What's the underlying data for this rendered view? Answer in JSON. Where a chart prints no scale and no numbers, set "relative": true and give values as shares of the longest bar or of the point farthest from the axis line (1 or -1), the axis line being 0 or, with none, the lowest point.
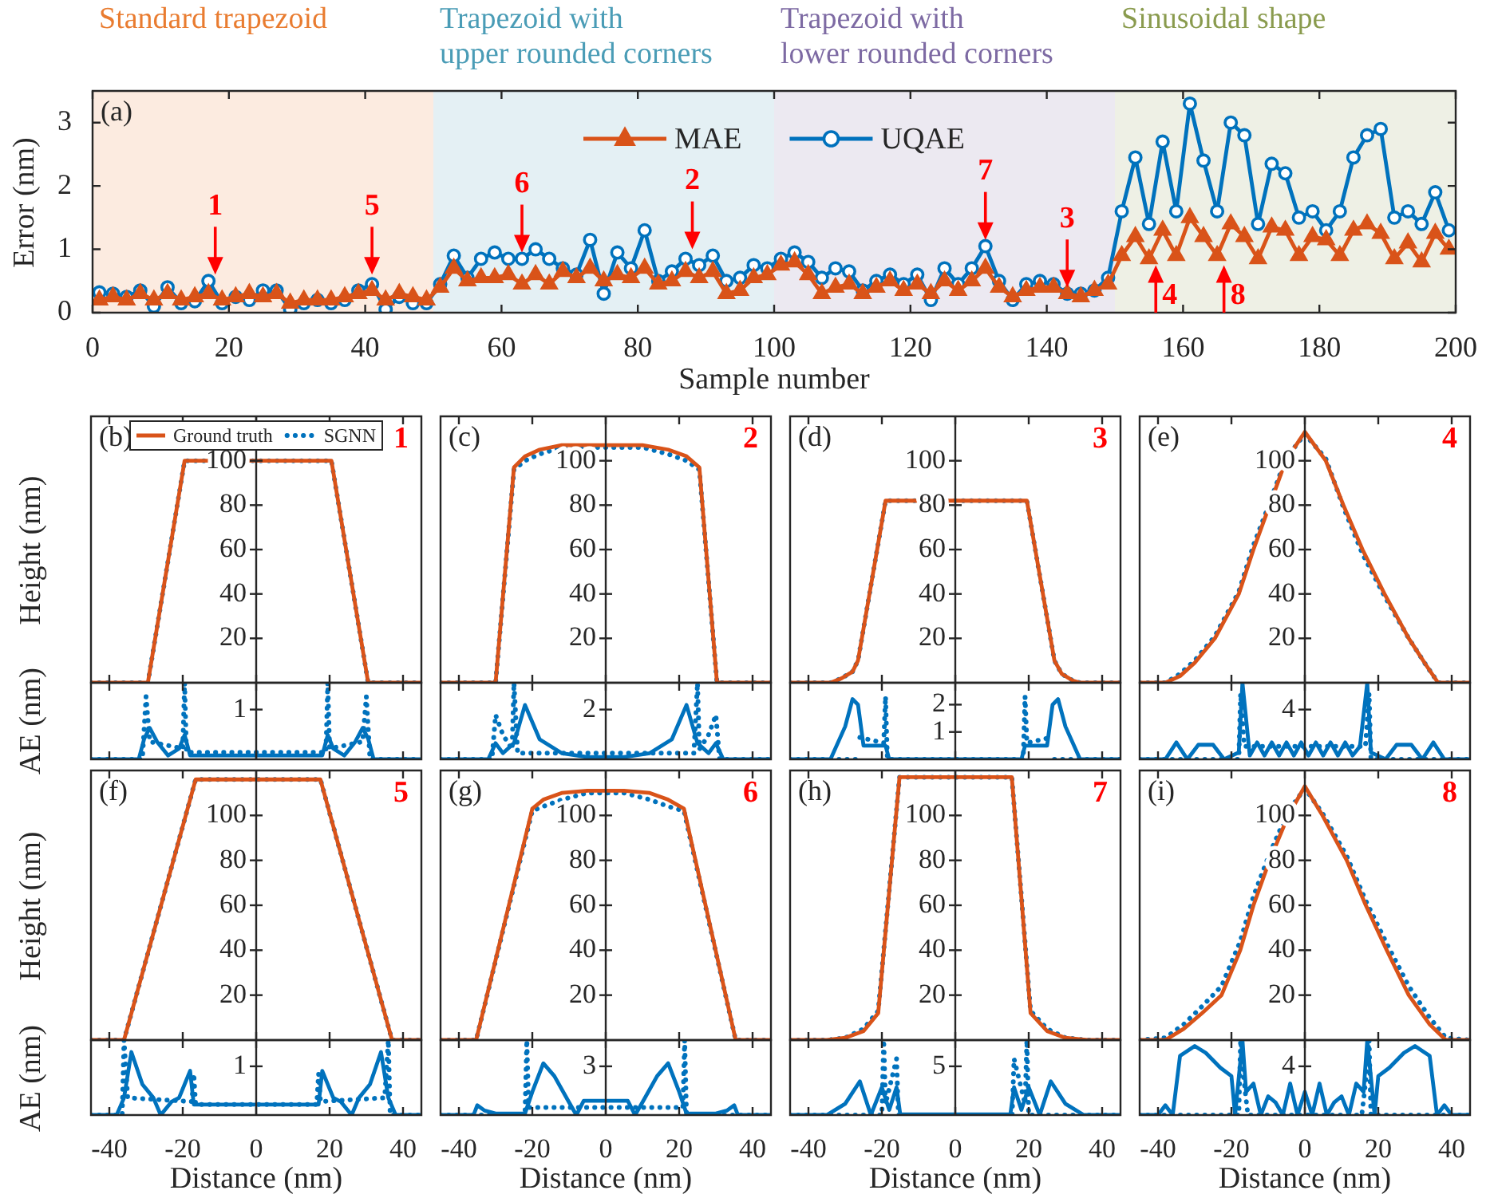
{
  "chart_data": [
    {
      "type": "line",
      "xlabel": "Sample number",
      "ylabel": "Error (nm)",
      "xlim": [
        0,
        200
      ],
      "xticks": [
        0,
        20,
        40,
        60,
        80,
        100,
        120,
        140,
        160,
        180,
        200
      ],
      "ylim": [
        0,
        3.5
      ],
      "yticks": [
        0,
        1,
        2,
        3
      ],
      "legend": "top",
      "bands": [
        {
          "axis": "x",
          "from": 0,
          "to": 50,
          "label": "Standard trapezoid",
          "color": "#e97c30"
        },
        {
          "axis": "x",
          "from": 50,
          "to": 100,
          "label": "Trapezoid with\nupper rounded corners",
          "color": "#4a9cb6"
        },
        {
          "axis": "x",
          "from": 100,
          "to": 150,
          "label": "Trapezoid with\nlower rounded corners",
          "color": "#7d6aa3"
        },
        {
          "axis": "x",
          "from": 150,
          "to": 200,
          "label": "Sinusoidal shape",
          "color": "#8a9b4e"
        }
      ],
      "annotations": [
        "(a)",
        {
          "text": "1",
          "x": 18,
          "y": 0.6
        },
        {
          "text": "5",
          "x": 41,
          "y": 0.6
        },
        {
          "text": "6",
          "x": 63,
          "y": 0.95
        },
        {
          "text": "2",
          "x": 88,
          "y": 1.0
        },
        {
          "text": "7",
          "x": 131,
          "y": 1.15
        },
        {
          "text": "3",
          "x": 143,
          "y": 0.4
        },
        {
          "text": "4",
          "x": 156,
          "y": 0.75
        },
        {
          "text": "8",
          "x": 166,
          "y": 0.75
        }
      ],
      "x": [
        1,
        3,
        5,
        7,
        9,
        11,
        13,
        15,
        17,
        19,
        21,
        23,
        25,
        27,
        29,
        31,
        33,
        35,
        37,
        39,
        41,
        43,
        45,
        47,
        49,
        51,
        53,
        55,
        57,
        59,
        61,
        63,
        65,
        67,
        69,
        71,
        73,
        75,
        77,
        79,
        81,
        83,
        85,
        87,
        89,
        91,
        93,
        95,
        97,
        99,
        101,
        103,
        105,
        107,
        109,
        111,
        113,
        115,
        117,
        119,
        121,
        123,
        125,
        127,
        129,
        131,
        133,
        135,
        137,
        139,
        141,
        143,
        145,
        147,
        149,
        151,
        153,
        155,
        157,
        159,
        161,
        163,
        165,
        167,
        169,
        171,
        173,
        175,
        177,
        179,
        181,
        183,
        185,
        187,
        189,
        191,
        193,
        195,
        197,
        199
      ],
      "series": [
        {
          "name": "MAE",
          "color": "#d95319",
          "marker": "triangle",
          "values": [
            0.2,
            0.25,
            0.2,
            0.3,
            0.2,
            0.3,
            0.2,
            0.25,
            0.3,
            0.2,
            0.25,
            0.3,
            0.25,
            0.3,
            0.15,
            0.2,
            0.2,
            0.2,
            0.25,
            0.3,
            0.35,
            0.2,
            0.3,
            0.25,
            0.2,
            0.4,
            0.7,
            0.5,
            0.55,
            0.55,
            0.6,
            0.45,
            0.6,
            0.45,
            0.65,
            0.55,
            0.7,
            0.5,
            0.6,
            0.55,
            0.7,
            0.45,
            0.5,
            0.65,
            0.55,
            0.65,
            0.3,
            0.35,
            0.55,
            0.6,
            0.75,
            0.8,
            0.6,
            0.3,
            0.4,
            0.45,
            0.3,
            0.4,
            0.5,
            0.35,
            0.45,
            0.3,
            0.5,
            0.35,
            0.5,
            0.7,
            0.4,
            0.25,
            0.35,
            0.4,
            0.4,
            0.3,
            0.25,
            0.35,
            0.45,
            0.9,
            1.2,
            0.85,
            1.3,
            0.9,
            1.5,
            1.2,
            0.9,
            1.4,
            1.2,
            0.85,
            1.35,
            1.3,
            0.9,
            1.2,
            1.15,
            0.9,
            1.3,
            1.4,
            1.25,
            0.85,
            1.1,
            0.8,
            1.25,
            1.0
          ]
        },
        {
          "name": "UQAE",
          "color": "#0072bd",
          "marker": "circle",
          "values": [
            0.32,
            0.3,
            0.25,
            0.35,
            0.1,
            0.4,
            0.15,
            0.18,
            0.5,
            0.15,
            0.25,
            0.2,
            0.35,
            0.35,
            0.05,
            0.15,
            0.2,
            0.15,
            0.2,
            0.35,
            0.45,
            0.05,
            0.25,
            0.15,
            0.15,
            0.45,
            0.9,
            0.55,
            0.85,
            0.95,
            0.85,
            0.85,
            1.0,
            0.85,
            0.7,
            0.6,
            1.15,
            0.3,
            0.95,
            0.7,
            1.3,
            0.5,
            0.65,
            0.85,
            0.75,
            0.9,
            0.5,
            0.55,
            0.75,
            0.7,
            0.85,
            0.95,
            0.8,
            0.55,
            0.7,
            0.65,
            0.35,
            0.5,
            0.6,
            0.45,
            0.6,
            0.2,
            0.7,
            0.45,
            0.7,
            1.05,
            0.5,
            0.2,
            0.45,
            0.5,
            0.45,
            0.3,
            0.3,
            0.35,
            0.55,
            1.6,
            2.45,
            1.4,
            2.7,
            1.6,
            3.3,
            2.4,
            1.6,
            3.0,
            2.8,
            1.4,
            2.35,
            2.2,
            1.5,
            1.6,
            1.3,
            1.6,
            2.45,
            2.8,
            2.9,
            1.5,
            1.6,
            1.4,
            1.9,
            1.3
          ]
        }
      ]
    },
    {
      "type": "line",
      "ylabel": "Height (nm)",
      "annotations": [
        "(b)",
        "1"
      ],
      "legend": "top",
      "tick_labels": "y",
      "xlim": [
        -45,
        45
      ],
      "xticks": [
        -40,
        -20,
        0,
        20,
        40
      ],
      "ylim": [
        0,
        120
      ],
      "yticks": [
        20,
        40,
        60,
        80,
        100
      ],
      "series": [
        {
          "name": "Ground truth",
          "color": "#d95319",
          "x": [
            -45,
            -29.5,
            -19.5,
            20.5,
            30.5,
            45
          ],
          "values": [
            0,
            0,
            100,
            100,
            0,
            0
          ]
        },
        {
          "name": "SGNN",
          "color": "#0072bd",
          "line_style": "dotted",
          "x": [
            -45,
            -29.5,
            -19.5,
            20.5,
            30.5,
            45
          ],
          "values": [
            0,
            0,
            100,
            100,
            0,
            0
          ]
        }
      ]
    },
    {
      "type": "line",
      "ylabel": "AE (nm)",
      "relative": true,
      "tick_labels": "y",
      "xlim": [
        -45,
        45
      ],
      "xticks": [
        -40,
        -20,
        0,
        20,
        40
      ],
      "annotations": [
        "1"
      ],
      "series": [
        {
          "color": "#0072bd",
          "x": [
            -45,
            -32,
            -30.5,
            -29,
            -27,
            -24,
            -21,
            -19.5,
            -18,
            -15,
            15,
            18,
            19.5,
            21,
            24,
            27,
            29,
            30.5,
            32,
            45
          ],
          "values": [
            0,
            0,
            0.27,
            0.41,
            0.23,
            0.05,
            0.14,
            0.32,
            0.05,
            0.05,
            0.05,
            0.05,
            0.32,
            0.14,
            0.05,
            0.23,
            0.41,
            0.27,
            0,
            0
          ]
        },
        {
          "color": "#0072bd",
          "line_style": "dotted",
          "x": [
            -45,
            -31,
            -30,
            -29,
            -20,
            -19.5,
            -19,
            19,
            19.5,
            20,
            29,
            30,
            31,
            45
          ],
          "values": [
            0,
            0,
            0.82,
            0.23,
            0.14,
            1,
            0.09,
            0.09,
            1,
            0.14,
            0.23,
            0.82,
            0,
            0
          ]
        }
      ]
    },
    {
      "type": "line",
      "annotations": [
        "(c)",
        "2"
      ],
      "tick_labels": "y",
      "xlim": [
        -45,
        45
      ],
      "xticks": [
        -40,
        -20,
        0,
        20,
        40
      ],
      "ylim": [
        0,
        120
      ],
      "yticks": [
        20,
        40,
        60,
        80,
        100
      ],
      "series": [
        {
          "color": "#d95319",
          "x": [
            -45,
            -30,
            -25,
            -22,
            -18,
            -12,
            10,
            17,
            22,
            25.5,
            30.3,
            45
          ],
          "values": [
            0,
            0,
            97,
            102,
            105,
            107,
            107,
            105,
            102,
            97,
            0,
            0
          ]
        },
        {
          "color": "#0072bd",
          "line_style": "dotted",
          "x": [
            -45,
            -30,
            -25,
            -22,
            -18,
            -12,
            10,
            17,
            22,
            25.5,
            30.3,
            45
          ],
          "values": [
            0,
            0,
            96,
            100,
            103,
            106,
            106,
            103,
            100,
            96,
            0,
            0
          ]
        }
      ]
    },
    {
      "type": "line",
      "relative": true,
      "tick_labels": "y",
      "xlim": [
        -45,
        45
      ],
      "xticks": [
        -40,
        -20,
        0,
        20,
        40
      ],
      "annotations": [
        "2"
      ],
      "series": [
        {
          "color": "#0072bd",
          "x": [
            -45,
            -32,
            -30,
            -28,
            -25,
            -22,
            -18,
            -12,
            -5,
            5,
            12,
            18,
            22,
            25,
            28,
            30,
            32,
            45
          ],
          "values": [
            0,
            0,
            0.21,
            0.08,
            0.21,
            0.71,
            0.26,
            0.08,
            0.03,
            0.03,
            0.08,
            0.26,
            0.71,
            0.21,
            0.08,
            0.21,
            0,
            0
          ]
        },
        {
          "color": "#0072bd",
          "line_style": "dotted",
          "x": [
            -45,
            -31,
            -30,
            -28,
            -25.5,
            -25,
            -24,
            24,
            25,
            25.5,
            28,
            30,
            31,
            45
          ],
          "values": [
            0,
            0,
            0.58,
            0.32,
            0.13,
            1,
            0.08,
            0.08,
            1,
            0.13,
            0.32,
            0.58,
            0,
            0
          ]
        }
      ]
    },
    {
      "type": "line",
      "annotations": [
        "(d)",
        "3"
      ],
      "tick_labels": "y",
      "xlim": [
        -45,
        45
      ],
      "xticks": [
        -40,
        -20,
        0,
        20,
        40
      ],
      "ylim": [
        0,
        120
      ],
      "yticks": [
        20,
        40,
        60,
        80,
        100
      ],
      "series": [
        {
          "color": "#d95319",
          "x": [
            -45,
            -34,
            -31,
            -28,
            -26.5,
            -19,
            19.5,
            27,
            29,
            32,
            34,
            45
          ],
          "values": [
            0,
            0,
            2,
            5,
            10,
            82,
            82,
            10,
            4,
            1,
            0,
            0
          ]
        },
        {
          "color": "#0072bd",
          "line_style": "dotted",
          "x": [
            -45,
            -34,
            -31,
            -28,
            -26.5,
            -19,
            19.5,
            27,
            29,
            32,
            34,
            45
          ],
          "values": [
            0,
            0,
            2,
            5,
            10,
            82,
            82,
            10,
            4,
            1,
            0,
            0
          ]
        }
      ]
    },
    {
      "type": "line",
      "tick_labels": "y",
      "xlim": [
        -45,
        45
      ],
      "xticks": [
        -40,
        -20,
        0,
        20,
        40
      ],
      "ylim": [
        0,
        2.8
      ],
      "yticks": [
        1,
        2
      ],
      "series": [
        {
          "color": "#0072bd",
          "x": [
            -45,
            -34,
            -30,
            -28,
            -26.5,
            -25,
            -19,
            -18,
            18,
            19,
            25,
            26.5,
            28,
            30,
            34,
            45
          ],
          "values": [
            0,
            0,
            1.2,
            2.2,
            2,
            0.5,
            0.5,
            0,
            0,
            0.5,
            0.5,
            2,
            2.2,
            1.2,
            0,
            0
          ]
        },
        {
          "color": "#0072bd",
          "line_style": "dotted",
          "x": [
            -45,
            -27,
            -26.5,
            -26,
            -19.5,
            -19,
            -18.5,
            18.5,
            19,
            19.5,
            26,
            26.5,
            27,
            45
          ],
          "values": [
            0,
            0,
            null,
            0.8,
            0.6,
            2.3,
            0,
            0,
            2.3,
            0.6,
            0.8,
            null,
            0,
            0
          ]
        }
      ]
    },
    {
      "type": "line",
      "annotations": [
        "(e)",
        "4"
      ],
      "tick_labels": "y",
      "xlim": [
        -45,
        45
      ],
      "xticks": [
        -40,
        -20,
        0,
        20,
        40
      ],
      "ylim": [
        0,
        120
      ],
      "yticks": [
        20,
        40,
        60,
        80,
        100
      ],
      "series": [
        {
          "color": "#d95319",
          "x": [
            -45,
            -38,
            -34,
            -30,
            -24.5,
            -18,
            -14,
            -9.6,
            -5.2,
            0,
            5.7,
            10.5,
            15.7,
            21.7,
            28.3,
            33,
            36.3,
            45
          ],
          "values": [
            0,
            0,
            3,
            9,
            20,
            40,
            60,
            80,
            100,
            113,
            100,
            80,
            60,
            40,
            20,
            8,
            0,
            0
          ]
        },
        {
          "color": "#0072bd",
          "line_style": "dotted",
          "x": [
            -45,
            -38,
            -34,
            -30,
            -24.5,
            -18,
            -14,
            -9.6,
            -5.2,
            0,
            5.7,
            10.5,
            15.7,
            21.7,
            28.3,
            33,
            36.3,
            45
          ],
          "values": [
            0,
            0,
            4,
            10,
            21,
            41,
            62,
            81,
            101,
            112,
            101,
            79,
            58,
            39,
            20,
            8,
            0,
            0
          ]
        }
      ]
    },
    {
      "type": "line",
      "relative": true,
      "tick_labels": "y",
      "xlim": [
        -45,
        45
      ],
      "xticks": [
        -40,
        -20,
        0,
        20,
        40
      ],
      "annotations": [
        "4"
      ],
      "series": [
        {
          "color": "#0072bd",
          "x": [
            -45,
            -38,
            -35,
            -32,
            -29,
            -25,
            -22,
            -18,
            -17,
            -15,
            -13,
            -11,
            -9,
            -7,
            -5,
            -3,
            -1,
            1,
            3,
            5,
            7,
            9,
            11,
            13,
            15,
            17,
            18,
            22,
            25,
            29,
            32,
            35,
            38,
            45
          ],
          "values": [
            0,
            0,
            0.22,
            0,
            0.19,
            0.19,
            0,
            0.09,
            1,
            0.05,
            0.22,
            0.05,
            0.22,
            0.05,
            0.22,
            0.05,
            0.22,
            0.05,
            0.22,
            0.05,
            0.22,
            0.05,
            0.22,
            0.05,
            0.17,
            1,
            0.09,
            0,
            0.19,
            0.19,
            0,
            0.22,
            0,
            0
          ]
        },
        {
          "color": "#0072bd",
          "line_style": "dotted",
          "x": [
            -45,
            -18,
            -17.5,
            -16.5,
            16.5,
            17.5,
            18,
            45
          ],
          "values": [
            0,
            0,
            0.86,
            0.17,
            0.17,
            0.86,
            0,
            0
          ]
        }
      ]
    },
    {
      "type": "line",
      "ylabel": "Height (nm)",
      "annotations": [
        "(f)",
        "5"
      ],
      "tick_labels": "y",
      "xlim": [
        -45,
        45
      ],
      "xticks": [
        -40,
        -20,
        0,
        20,
        40
      ],
      "ylim": [
        0,
        120
      ],
      "yticks": [
        20,
        40,
        60,
        80,
        100
      ],
      "series": [
        {
          "color": "#d95319",
          "x": [
            -45,
            -36,
            -16.5,
            17.5,
            37,
            45
          ],
          "values": [
            0,
            0,
            116,
            116,
            0,
            0
          ]
        },
        {
          "color": "#0072bd",
          "line_style": "dotted",
          "x": [
            -45,
            -36,
            -16.5,
            17.5,
            37,
            45
          ],
          "values": [
            0,
            0,
            116,
            116,
            0,
            0
          ]
        }
      ]
    },
    {
      "type": "line",
      "ylabel": "AE (nm)",
      "xlabel": "Distance (nm)",
      "relative": true,
      "xlim": [
        -45,
        45
      ],
      "xticks": [
        -40,
        -20,
        0,
        20,
        40
      ],
      "annotations": [
        "1"
      ],
      "series": [
        {
          "color": "#0072bd",
          "x": [
            -45,
            -38,
            -36,
            -34,
            -31,
            -28,
            -26,
            -23,
            -21,
            -18,
            -17,
            17,
            18,
            21,
            23,
            26,
            28,
            31,
            34,
            36,
            38,
            45
          ],
          "values": [
            0,
            0,
            0.23,
            0.84,
            0.41,
            0.23,
            0,
            0.18,
            0.23,
            0.59,
            0.14,
            0.14,
            0.59,
            0.23,
            0.18,
            0,
            0.23,
            0.41,
            0.84,
            0.23,
            0,
            0
          ]
        },
        {
          "color": "#0072bd",
          "line_style": "dotted",
          "x": [
            -45,
            -36.5,
            -36,
            -35,
            -17.5,
            -17,
            -16.5,
            16.5,
            17,
            17.5,
            35,
            36,
            36.5,
            45
          ],
          "values": [
            0,
            0,
            1,
            0.23,
            0.18,
            0.55,
            0.14,
            0.14,
            0.55,
            0.18,
            0.23,
            1,
            0,
            0
          ]
        }
      ]
    },
    {
      "type": "line",
      "annotations": [
        "(g)",
        "6"
      ],
      "tick_labels": "y",
      "xlim": [
        -45,
        45
      ],
      "xticks": [
        -40,
        -20,
        0,
        20,
        40
      ],
      "ylim": [
        0,
        120
      ],
      "yticks": [
        20,
        40,
        60,
        80,
        100
      ],
      "series": [
        {
          "color": "#d95319",
          "x": [
            -45,
            -35.3,
            -20,
            -17,
            -12,
            -5,
            5,
            12,
            17,
            21.3,
            35.4,
            45
          ],
          "values": [
            0,
            0,
            103,
            107,
            110,
            111,
            111,
            110,
            107,
            103,
            0,
            0
          ]
        },
        {
          "color": "#0072bd",
          "line_style": "dotted",
          "x": [
            -45,
            -35.3,
            -20,
            -17,
            -12,
            -5,
            5,
            12,
            17,
            21.3,
            35.4,
            45
          ],
          "values": [
            0,
            0,
            102,
            104,
            107,
            110,
            110,
            107,
            104,
            102,
            0,
            0
          ]
        }
      ]
    },
    {
      "type": "line",
      "xlabel": "Distance (nm)",
      "relative": true,
      "xlim": [
        -45,
        45
      ],
      "xticks": [
        -40,
        -20,
        0,
        20,
        40
      ],
      "annotations": [
        "3"
      ],
      "series": [
        {
          "color": "#0072bd",
          "x": [
            -45,
            -36,
            -35,
            -33,
            -30,
            -22,
            -20,
            -17,
            -14,
            -10,
            -8,
            -6,
            6,
            8,
            10,
            14,
            17,
            20,
            22,
            30,
            33,
            35,
            36,
            45
          ],
          "values": [
            0,
            0,
            0.13,
            0.06,
            0.02,
            0.02,
            0.31,
            0.69,
            0.52,
            0.17,
            0,
            0.19,
            0.19,
            0,
            0.17,
            0.52,
            0.69,
            0.31,
            0.02,
            0.02,
            0.06,
            0.13,
            0,
            0
          ]
        },
        {
          "color": "#0072bd",
          "line_style": "dotted",
          "x": [
            -45,
            -22,
            -21.5,
            -21,
            21,
            21.5,
            22,
            45
          ],
          "values": [
            0,
            0,
            1,
            0.1,
            0.1,
            1,
            0,
            0
          ]
        }
      ]
    },
    {
      "type": "line",
      "annotations": [
        "(h)",
        "7"
      ],
      "tick_labels": "y",
      "xlim": [
        -45,
        45
      ],
      "xticks": [
        -40,
        -20,
        0,
        20,
        40
      ],
      "ylim": [
        0,
        120
      ],
      "yticks": [
        20,
        40,
        60,
        80,
        100
      ],
      "series": [
        {
          "color": "#d95319",
          "x": [
            -45,
            -35,
            -30,
            -25,
            -21,
            -15.2,
            15.4,
            20.5,
            25,
            30,
            36,
            45
          ],
          "values": [
            0,
            0,
            1,
            4,
            12,
            117,
            117,
            12,
            4,
            1,
            0,
            0
          ]
        },
        {
          "color": "#0072bd",
          "line_style": "dotted",
          "x": [
            -45,
            -35,
            -30,
            -25,
            -21,
            -15.2,
            15.4,
            20.5,
            25,
            30,
            36,
            45
          ],
          "values": [
            0,
            0,
            1,
            5,
            13,
            117,
            117,
            13,
            5,
            1,
            0,
            0
          ]
        }
      ]
    },
    {
      "type": "line",
      "xlabel": "Distance (nm)",
      "relative": true,
      "xlim": [
        -45,
        45
      ],
      "xticks": [
        -40,
        -20,
        0,
        20,
        40
      ],
      "annotations": [
        "5"
      ],
      "series": [
        {
          "color": "#0072bd",
          "x": [
            -45,
            -35,
            -30,
            -26,
            -23,
            -20,
            -18,
            -16,
            -15,
            15,
            16,
            18,
            20,
            23,
            26,
            30,
            35,
            45
          ],
          "values": [
            0,
            0,
            0.15,
            0.45,
            0,
            0.37,
            0.07,
            0.37,
            0.01,
            0.01,
            0.37,
            0.07,
            0.37,
            0,
            0.45,
            0.15,
            0,
            0
          ]
        },
        {
          "color": "#0072bd",
          "line_style": "dotted",
          "x": [
            -45,
            -20,
            -19.5,
            -19,
            -16,
            -15.5,
            15.5,
            16,
            19,
            19.5,
            20,
            45
          ],
          "values": [
            0,
            0,
            1,
            0.15,
            0.75,
            0,
            0,
            0.75,
            0.15,
            1,
            0,
            0
          ]
        }
      ]
    },
    {
      "type": "line",
      "annotations": [
        "(i)",
        "8"
      ],
      "tick_labels": "y",
      "xlim": [
        -45,
        45
      ],
      "xticks": [
        -40,
        -20,
        0,
        20,
        40
      ],
      "ylim": [
        0,
        120
      ],
      "yticks": [
        20,
        40,
        60,
        80,
        100
      ],
      "series": [
        {
          "color": "#d95319",
          "x": [
            -45,
            -38,
            -33,
            -28,
            -22.7,
            -17.6,
            -14,
            -9.6,
            -4.5,
            0,
            4.8,
            11.4,
            16.6,
            22.3,
            28.3,
            34,
            38.4,
            45
          ],
          "values": [
            0,
            0,
            5,
            12,
            20,
            40,
            60,
            80,
            100,
            113,
            100,
            80,
            60,
            40,
            20,
            7,
            0,
            0
          ]
        },
        {
          "color": "#0072bd",
          "line_style": "dotted",
          "x": [
            -45,
            -38,
            -33,
            -28,
            -22.7,
            -17.6,
            -14,
            -9.6,
            -4.5,
            0,
            4.8,
            11.4,
            16.6,
            22.3,
            28.3,
            34,
            38.4,
            45
          ],
          "values": [
            0,
            1,
            7,
            15,
            24,
            44,
            64,
            83,
            102,
            112,
            101,
            82,
            62,
            43,
            24,
            10,
            1,
            0
          ]
        }
      ]
    },
    {
      "type": "line",
      "xlabel": "Distance (nm)",
      "relative": true,
      "xlim": [
        -45,
        45
      ],
      "xticks": [
        -40,
        -20,
        0,
        20,
        40
      ],
      "annotations": [
        "4"
      ],
      "series": [
        {
          "color": "#0072bd",
          "x": [
            -45,
            -40,
            -38,
            -36,
            -34,
            -30,
            -27,
            -23,
            -20,
            -19,
            -17,
            -16,
            -14,
            -12,
            -10,
            -8,
            -6,
            -4,
            -2,
            0,
            2,
            4,
            6,
            8,
            10,
            12,
            14,
            16,
            17,
            19,
            20,
            23,
            27,
            30,
            34,
            36,
            38,
            40,
            45
          ],
          "values": [
            0,
            0,
            0.13,
            0,
            0.79,
            0.92,
            0.83,
            0.63,
            0.52,
            0,
            1,
            0.31,
            0.42,
            0,
            0.25,
            0.17,
            0,
            0.42,
            0,
            0.31,
            0,
            0.42,
            0,
            0.17,
            0.25,
            0,
            0.42,
            0.31,
            1,
            0,
            0.52,
            0.63,
            0.83,
            0.92,
            0.79,
            0,
            0.13,
            0,
            0
          ]
        },
        {
          "color": "#0072bd",
          "line_style": "dotted",
          "x": [
            -45,
            -18,
            -17.5,
            -16.5,
            -15.5,
            15.5,
            16.5,
            17.5,
            18,
            45
          ],
          "values": [
            0,
            0,
            1,
            0.42,
            0,
            0,
            0.42,
            1,
            0,
            0
          ]
        }
      ]
    }
  ]
}
